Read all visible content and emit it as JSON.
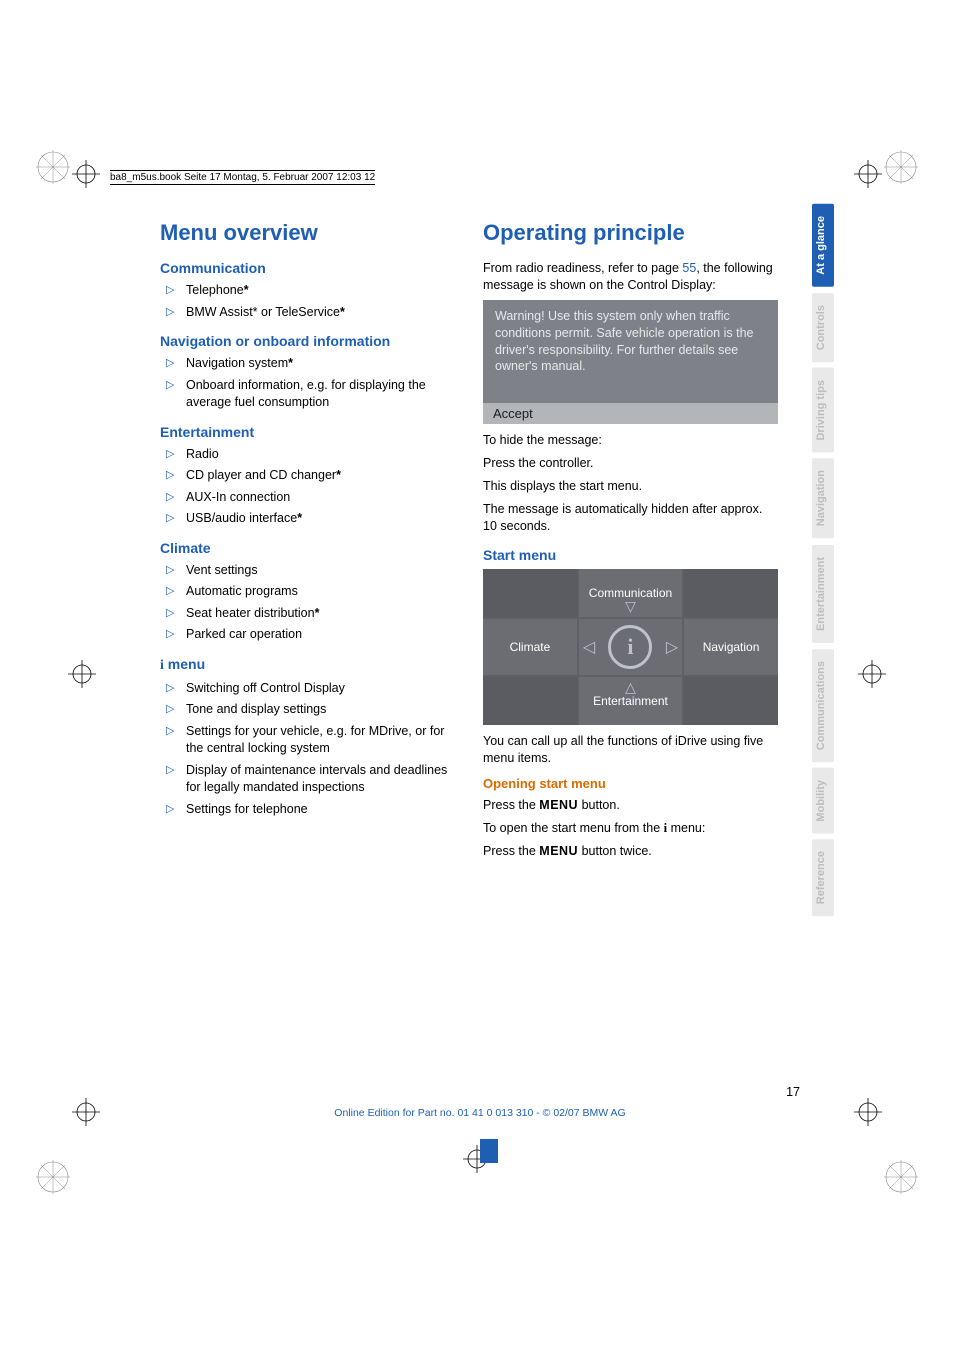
{
  "header_line": "ba8_m5us.book  Seite 17  Montag, 5. Februar 2007  12:03 12",
  "left": {
    "h1": "Menu overview",
    "sections": [
      {
        "h2": "Communication",
        "items": [
          {
            "text": "Telephone",
            "star": true
          },
          {
            "text": "BMW Assist* or TeleService",
            "star": true
          }
        ]
      },
      {
        "h2": "Navigation or onboard information",
        "items": [
          {
            "text": "Navigation system",
            "star": true
          },
          {
            "text": "Onboard information, e.g. for displaying the average fuel consumption"
          }
        ]
      },
      {
        "h2": "Entertainment",
        "items": [
          {
            "text": "Radio"
          },
          {
            "text": "CD player and CD changer",
            "star": true
          },
          {
            "text": "AUX-In connection"
          },
          {
            "text": "USB/audio interface",
            "star": true
          }
        ]
      },
      {
        "h2": "Climate",
        "items": [
          {
            "text": "Vent settings"
          },
          {
            "text": "Automatic programs"
          },
          {
            "text": "Seat heater distribution",
            "star": true
          },
          {
            "text": "Parked car operation"
          }
        ]
      },
      {
        "h2_i": " menu",
        "items": [
          {
            "text": "Switching off Control Display"
          },
          {
            "text": "Tone and display settings"
          },
          {
            "text": "Settings for your vehicle, e.g. for MDrive, or for the central locking system"
          },
          {
            "text": "Display of maintenance intervals and deadlines for legally mandated inspections"
          },
          {
            "text": "Settings for telephone"
          }
        ]
      }
    ]
  },
  "right": {
    "h1": "Operating principle",
    "intro_a": "From radio readiness, refer to page ",
    "intro_link": "55",
    "intro_b": ", the following message is shown on the Control Display:",
    "warn": "Warning! Use this system only when traffic conditions permit. Safe vehicle operation is the driver's responsibility. For further details see owner's manual.",
    "accept": "Accept",
    "p1": "To hide the message:",
    "p2": "Press the controller.",
    "p3": "This displays the start menu.",
    "p4": "The message is automatically hidden after approx. 10 seconds.",
    "h2_start": "Start menu",
    "sm": {
      "top": "Communication",
      "left": "Climate",
      "right": "Navigation",
      "bottom": "Entertainment"
    },
    "p5": "You can call up all the functions of iDrive using five menu items.",
    "h3_open": "Opening start menu",
    "p6a": "Press the ",
    "p6b": " button.",
    "p7a": "To open the start menu from the ",
    "p7b": " menu:",
    "p8a": "Press the ",
    "p8b": " button twice.",
    "menu_word": "MENU"
  },
  "tabs": [
    {
      "label": "At a glance",
      "active": true
    },
    {
      "label": "Controls"
    },
    {
      "label": "Driving tips"
    },
    {
      "label": "Navigation"
    },
    {
      "label": "Entertainment"
    },
    {
      "label": "Communications"
    },
    {
      "label": "Mobility"
    },
    {
      "label": "Reference"
    }
  ],
  "page_num": "17",
  "footer": "Online Edition for Part no. 01 41 0 013 310 - © 02/07 BMW AG"
}
